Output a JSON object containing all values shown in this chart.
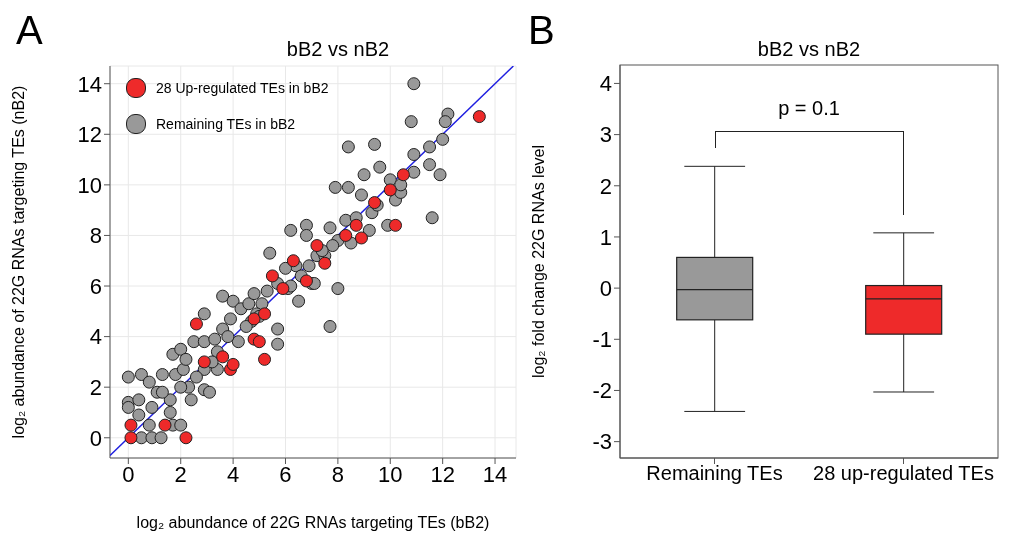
{
  "chart_data": [
    {
      "type": "scatter",
      "title": "bB2 vs nB2",
      "xlabel": "log₂ abundance of 22G RNAs targeting TEs (bB2)",
      "ylabel": "log₂ abundance of 22G RNAs targeting TEs (nB2)",
      "annotations": [
        "A"
      ],
      "xlim": [
        -0.7,
        14.8
      ],
      "ylim": [
        -0.8,
        14.7
      ],
      "xticks": [
        0,
        2,
        4,
        6,
        8,
        10,
        12,
        14
      ],
      "yticks": [
        0,
        2,
        4,
        6,
        8,
        10,
        12,
        14
      ],
      "grid": true,
      "legend": "top left",
      "marker": "circle",
      "series": [
        {
          "name": "28 Up-regulated TEs in bB2",
          "color": "#ee2a2a",
          "x": [
            0.1,
            0.1,
            1.4,
            2.2,
            2.6,
            2.9,
            3.6,
            3.9,
            4.0,
            4.8,
            5.0,
            5.2,
            4.8,
            5.2,
            5.9,
            5.5,
            6.3,
            6.8,
            7.2,
            7.5,
            8.3,
            8.7,
            8.9,
            9.4,
            10.0,
            10.2,
            10.5,
            13.4
          ],
          "values": [
            0.5,
            0,
            0.5,
            0,
            4.5,
            3.0,
            3.2,
            2.7,
            2.9,
            3.9,
            3.8,
            3.1,
            4.7,
            4.9,
            5.9,
            6.4,
            7.0,
            6.2,
            7.6,
            6.9,
            8.0,
            8.4,
            7.9,
            9.3,
            9.8,
            8.4,
            10.4,
            12.7
          ]
        },
        {
          "name": "Remaining TEs in bB2",
          "color": "#999999",
          "x": [
            0,
            0.5,
            0,
            0,
            0.4,
            0.4,
            0.5,
            0.9,
            1.25,
            0.8,
            0.9,
            0.8,
            1.3,
            1.1,
            1.7,
            2.0,
            1.6,
            1.6,
            1.8,
            1.7,
            2.1,
            2.4,
            2.3,
            2.5,
            2.0,
            2.9,
            3.1,
            2.9,
            2.9,
            3.3,
            3.6,
            3.6,
            4.0,
            3.9,
            4.2,
            3.4,
            4.3,
            4.6,
            4.8,
            5.1,
            5.3,
            5.4,
            5.7,
            5.7,
            5.7,
            6.2,
            6.8,
            6.8,
            6.1,
            6.5,
            7.0,
            6.4,
            6.0,
            4.7,
            4.9,
            3.4,
            2.9,
            2.2,
            2.6,
            1.3,
            2.0,
            10.9,
            12.2,
            12.1,
            10.8,
            8.4,
            9.4,
            12.0,
            11.5,
            10.9,
            9.6,
            9.0,
            7.9,
            8.4,
            8.9,
            10.9,
            11.5,
            11.9,
            10.2,
            10.4,
            9.3,
            9.9,
            11.6,
            9.2,
            8.3,
            7.7,
            8.0,
            8.5,
            7.2,
            7.1,
            8.0,
            7.7,
            7.5,
            6.9,
            10.0,
            10.4,
            9.5,
            8.7,
            7.8,
            7.4,
            6.6,
            6.2,
            5.0,
            4.5,
            3.2,
            3.8
          ],
          "values": [
            2.4,
            2.5,
            1.4,
            1.2,
            1.5,
            0.9,
            0,
            0,
            0,
            0.5,
            1.2,
            2.2,
            2.5,
            1.8,
            0.5,
            0.5,
            1.0,
            1.5,
            2.5,
            3.3,
            2.7,
            1.5,
            2.0,
            3.8,
            3.5,
            1.9,
            1.8,
            3.8,
            4.9,
            3.9,
            4.3,
            5.6,
            5.4,
            4.7,
            3.8,
            2.7,
            5.1,
            5.3,
            5.7,
            5.3,
            5.8,
            7.3,
            3.7,
            4.3,
            6.1,
            8.2,
            8.4,
            8.0,
            5.9,
            5.4,
            6.1,
            6.8,
            6.7,
            4.6,
            4.9,
            3.4,
            2.7,
            3.1,
            2.4,
            1.8,
            2.0,
            14.0,
            12.8,
            12.5,
            12.5,
            11.5,
            11.6,
            11.8,
            11.5,
            11.2,
            10.7,
            10.4,
            9.9,
            9.9,
            9.6,
            10.5,
            10.8,
            10.4,
            9.4,
            9.7,
            8.9,
            8.4,
            8.7,
            8.2,
            8.6,
            8.3,
            7.8,
            7.7,
            7.2,
            6.1,
            5.9,
            4.4,
            7.2,
            6.8,
            10.2,
            10.0,
            9.2,
            8.7,
            7.6,
            7.4,
            6.4,
            6.0,
            4.8,
            4.4,
            3.0,
            4.0
          ]
        },
        {
          "type": "line",
          "marker": "none",
          "color": "#1f1fe0",
          "x": [
            -0.7,
            14.7
          ],
          "values": [
            -0.7,
            14.7
          ]
        }
      ]
    },
    {
      "type": "box",
      "title": "bB2 vs nB2",
      "ylabel": "log₂ fold change 22G RNAs level",
      "annotations": [
        "B",
        "p = 0.1"
      ],
      "categories": [
        "Remaining TEs",
        "28 up-regulated TEs"
      ],
      "colors": [
        "#999999",
        "#ee2a2a"
      ],
      "ylim": [
        -3.32,
        4.36
      ],
      "yticks": [
        -3,
        -2,
        -1,
        0,
        1,
        2,
        3,
        4
      ],
      "boxes": [
        {
          "low": -2.41,
          "q1": -0.62,
          "median": -0.03,
          "q3": 0.6,
          "high": 2.38
        },
        {
          "low": -2.03,
          "q1": -0.9,
          "median": -0.21,
          "q3": 0.05,
          "high": 1.08
        }
      ]
    }
  ]
}
